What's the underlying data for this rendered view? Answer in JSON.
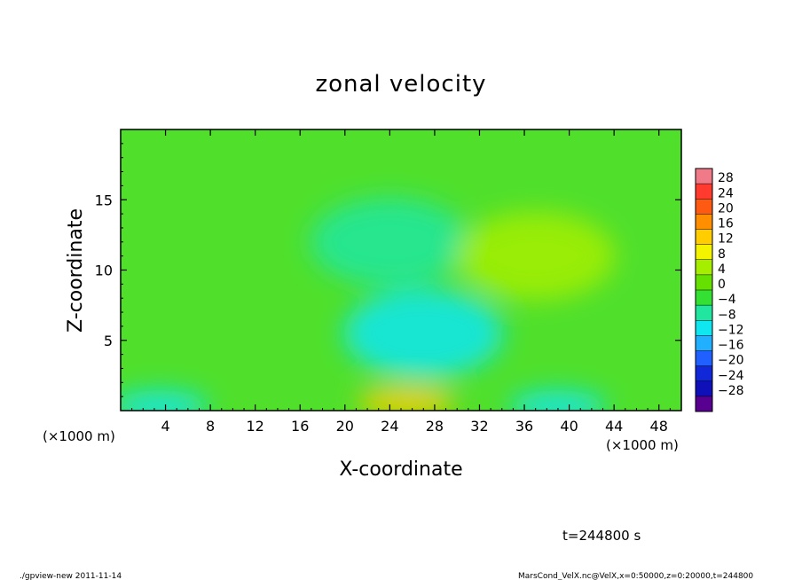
{
  "chart_data": {
    "type": "heatmap",
    "title": "zonal velocity",
    "xlabel": "X-coordinate",
    "ylabel": "Z-coordinate",
    "x_unit_label": "(×1000 m)",
    "x_unit_label_right": "(×1000 m)",
    "xlim": [
      0,
      50
    ],
    "ylim": [
      0,
      20
    ],
    "x_ticks": [
      4,
      8,
      12,
      16,
      20,
      24,
      28,
      32,
      36,
      40,
      44,
      48
    ],
    "y_ticks": [
      5,
      10,
      15
    ],
    "colorbar": {
      "levels": [
        28,
        24,
        20,
        16,
        12,
        8,
        4,
        0,
        -4,
        -8,
        -12,
        -16,
        -20,
        -24,
        -28
      ],
      "level_labels": [
        "28",
        "24",
        "20",
        "16",
        "12",
        "8",
        "4",
        "0",
        "−4",
        "−8",
        "−12",
        "−16",
        "−20",
        "−24",
        "−28"
      ],
      "colors": [
        "#f07a88",
        "#ff3a2e",
        "#ff5a12",
        "#ff8f00",
        "#ffcd00",
        "#f4f400",
        "#a6ee00",
        "#66e000",
        "#33e033",
        "#20e6a0",
        "#10e6f0",
        "#20b0ff",
        "#2060ff",
        "#1028d8",
        "#1010b8",
        "#580090"
      ]
    },
    "features": [
      {
        "x": 25.5,
        "z": 0.6,
        "value": 12
      },
      {
        "x": 3.5,
        "z": 0.3,
        "value": -10
      },
      {
        "x": 39,
        "z": 0.3,
        "value": -10
      },
      {
        "x": 27,
        "z": 5.5,
        "value": -9
      },
      {
        "x": 24,
        "z": 12,
        "value": -6
      },
      {
        "x": 37,
        "z": 11,
        "value": 5
      }
    ]
  },
  "annotation": "t=244800 s",
  "footer": {
    "left": "./gpview-new  2011-11-14",
    "right": "MarsCond_VelX.nc@VelX,x=0:50000,z=0:20000,t=244800"
  }
}
